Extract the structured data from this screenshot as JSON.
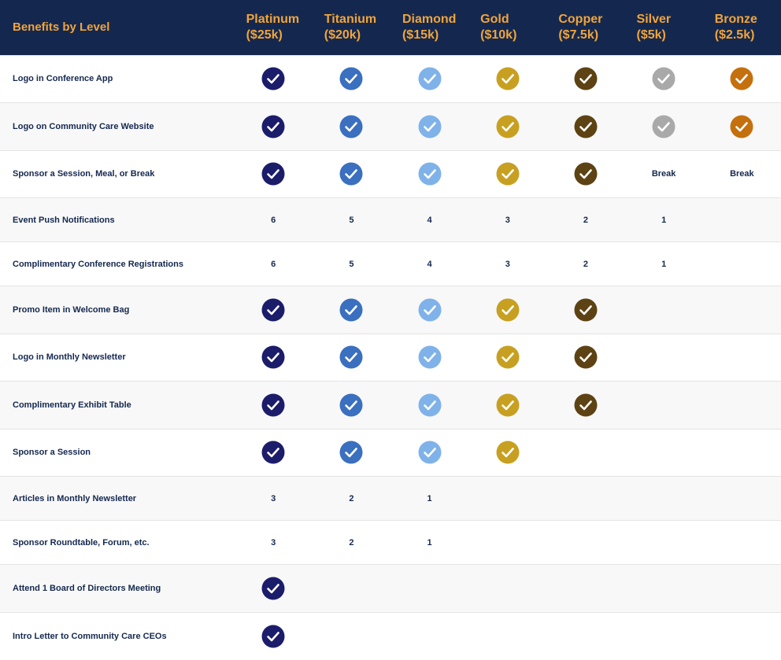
{
  "header": {
    "title": "Benefits by Level"
  },
  "levels": [
    {
      "name": "Platinum",
      "price": "($25k)",
      "color": "#1b1c6a"
    },
    {
      "name": "Titanium",
      "price": "($20k)",
      "color": "#3b6fbf"
    },
    {
      "name": "Diamond",
      "price": "($15k)",
      "color": "#80b2ea"
    },
    {
      "name": "Gold",
      "price": "($10k)",
      "color": "#c8a021"
    },
    {
      "name": "Copper",
      "price": "($7.5k)",
      "color": "#5d4213"
    },
    {
      "name": "Silver",
      "price": "($5k)",
      "color": "#a9a9a9"
    },
    {
      "name": "Bronze",
      "price": "($2.5k)",
      "color": "#c5700e"
    }
  ],
  "table": {
    "rows": [
      {
        "label": "Logo in Conference App",
        "cells": [
          true,
          true,
          true,
          true,
          true,
          true,
          true
        ]
      },
      {
        "label": "Logo on Community Care Website",
        "cells": [
          true,
          true,
          true,
          true,
          true,
          true,
          true
        ]
      },
      {
        "label": "Sponsor a Session, Meal, or Break",
        "cells": [
          true,
          true,
          true,
          true,
          true,
          "Break",
          "Break"
        ]
      },
      {
        "label": "Event Push Notifications",
        "cells": [
          6,
          5,
          4,
          3,
          2,
          1,
          null
        ]
      },
      {
        "label": "Complimentary Conference Registrations",
        "cells": [
          6,
          5,
          4,
          3,
          2,
          1,
          null
        ]
      },
      {
        "label": "Promo Item in Welcome Bag",
        "cells": [
          true,
          true,
          true,
          true,
          true,
          null,
          null
        ]
      },
      {
        "label": "Logo in Monthly Newsletter",
        "cells": [
          true,
          true,
          true,
          true,
          true,
          null,
          null
        ]
      },
      {
        "label": "Complimentary Exhibit Table",
        "cells": [
          true,
          true,
          true,
          true,
          true,
          null,
          null
        ]
      },
      {
        "label": "Sponsor a Session",
        "cells": [
          true,
          true,
          true,
          true,
          null,
          null,
          null
        ]
      },
      {
        "label": "Articles in Monthly Newsletter",
        "cells": [
          3,
          2,
          1,
          null,
          null,
          null,
          null
        ]
      },
      {
        "label": "Sponsor Roundtable, Forum, etc.",
        "cells": [
          3,
          2,
          1,
          null,
          null,
          null,
          null
        ]
      },
      {
        "label": "Attend 1 Board of Directors Meeting",
        "cells": [
          true,
          null,
          null,
          null,
          null,
          null,
          null
        ]
      },
      {
        "label": "Intro Letter to Community Care CEOs",
        "cells": [
          true,
          null,
          null,
          null,
          null,
          null,
          null
        ]
      }
    ]
  }
}
